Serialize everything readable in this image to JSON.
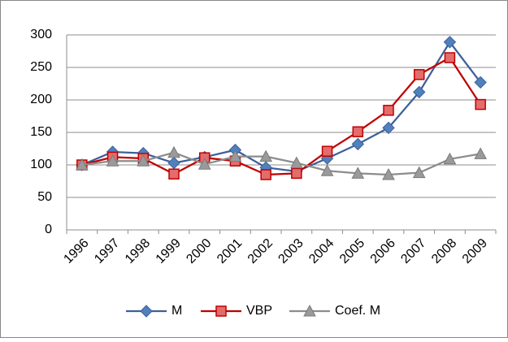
{
  "chart_data": {
    "type": "line",
    "categories": [
      "1996",
      "1997",
      "1998",
      "1999",
      "2000",
      "2001",
      "2002",
      "2003",
      "2004",
      "2005",
      "2006",
      "2007",
      "2008",
      "2009"
    ],
    "series": [
      {
        "name": "M",
        "color": "#3d5f9a",
        "marker": "diamond",
        "values": [
          100,
          120,
          118,
          103,
          112,
          123,
          96,
          90,
          110,
          132,
          157,
          212,
          289,
          227
        ]
      },
      {
        "name": "VBP",
        "color": "#c00000",
        "marker": "square",
        "values": [
          100,
          112,
          110,
          86,
          111,
          106,
          85,
          87,
          121,
          151,
          184,
          239,
          265,
          193
        ]
      },
      {
        "name": "Coef. M",
        "color": "#8c8c8c",
        "marker": "triangle",
        "values": [
          100,
          106,
          106,
          119,
          101,
          113,
          113,
          103,
          91,
          87,
          85,
          88,
          109,
          117
        ]
      }
    ],
    "ylim": [
      0,
      300
    ],
    "yticks": [
      0,
      50,
      100,
      150,
      200,
      250,
      300
    ],
    "grid": true,
    "legend": "bottom"
  }
}
